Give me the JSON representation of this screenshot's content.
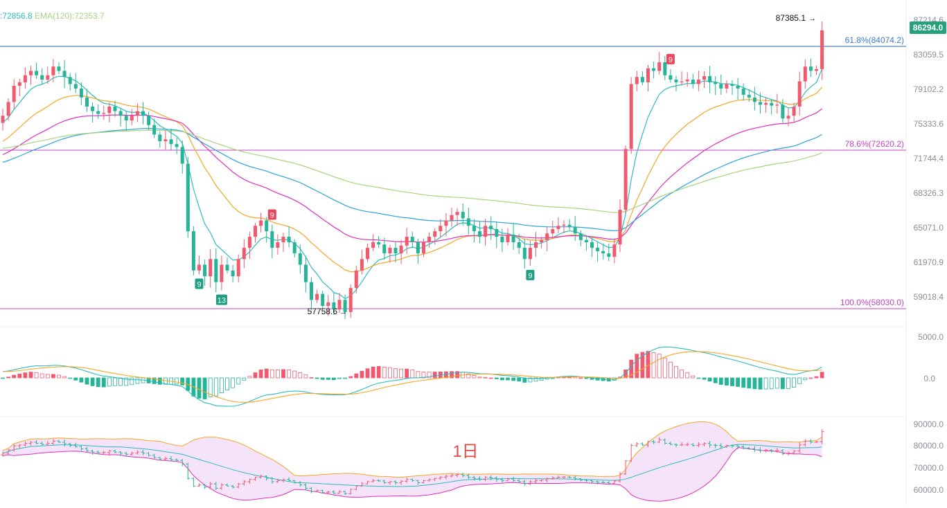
{
  "header": {
    "ema_a_label": ":72856.8",
    "ema_b_label": "EMA(120):72353.7"
  },
  "colors": {
    "up": "#ef5a6f",
    "down": "#25b497",
    "ema_fast": "#2bbcc1",
    "ema_mid": "#f5a623",
    "ema_slow_pink": "#e02dba",
    "ema_blue": "#27a4d8",
    "ema_green": "#a7d47c",
    "fib": "#2962a0",
    "fib_pink": "#c342c8",
    "current_price_bg": "#26a17b"
  },
  "price_panel": {
    "axis_ticks": [
      "87214.6",
      "83059.5",
      "79102.2",
      "75333.6",
      "71744.4",
      "68326.3",
      "65071.0",
      "61970.9",
      "59018.4"
    ],
    "current_price": "86294.0",
    "high_label": "87385.1",
    "low_label": "57758.6",
    "fib_levels": [
      {
        "label": "61.8%(84074.2)",
        "price": 84074.2
      },
      {
        "label": "78.6%(72620.2)",
        "price": 72620.2
      },
      {
        "label": "100.0%(58030.0)",
        "price": 58030.0
      }
    ],
    "td_counts": [
      {
        "text": "9",
        "kind": "up",
        "candle": 48
      },
      {
        "text": "9",
        "kind": "down",
        "candle": 35
      },
      {
        "text": "13",
        "kind": "down",
        "candle": 39
      },
      {
        "text": "9",
        "kind": "down",
        "candle": 94
      },
      {
        "text": "9",
        "kind": "up",
        "candle": 119
      }
    ]
  },
  "macd_panel": {
    "axis_ticks": [
      "5000.0",
      "0.0"
    ]
  },
  "bb_panel": {
    "axis_ticks": [
      "90000.0",
      "80000.0",
      "70000.0",
      "60000.0"
    ],
    "watermark": "1日"
  },
  "chart_data": {
    "type": "candlestick",
    "timeframe": "1日",
    "closes": [
      76500,
      78000,
      79800,
      80200,
      81000,
      81500,
      81000,
      80500,
      81000,
      82000,
      81500,
      80800,
      80000,
      79500,
      78500,
      77500,
      77000,
      76700,
      76800,
      77500,
      77000,
      76500,
      76000,
      76500,
      77000,
      76500,
      75500,
      74500,
      73800,
      74000,
      73500,
      73200,
      71500,
      65000,
      61500,
      62000,
      61000,
      62500,
      60500,
      62000,
      61500,
      61000,
      62500,
      63500,
      64500,
      65500,
      66000,
      65000,
      63500,
      64000,
      64500,
      64000,
      63000,
      62000,
      60500,
      59000,
      59500,
      58500,
      58800,
      58200,
      59000,
      58000,
      60000,
      61500,
      62500,
      63500,
      64000,
      63800,
      63000,
      63500,
      63000,
      63700,
      64500,
      64000,
      63000,
      64000,
      64500,
      65000,
      65500,
      66000,
      66500,
      66800,
      66200,
      65500,
      65000,
      64500,
      65500,
      65200,
      64500,
      64000,
      64700,
      64000,
      63500,
      62500,
      63500,
      64000,
      64200,
      64800,
      65200,
      65500,
      65600,
      65400,
      64800,
      64200,
      64000,
      63500,
      63200,
      63000,
      62700,
      63800,
      67000,
      73000,
      80000,
      80800,
      80200,
      81800,
      81500,
      82500,
      81000,
      80500,
      80200,
      80300,
      80500,
      80000,
      80500,
      80900,
      80200,
      80000,
      79500,
      80000,
      79800,
      79500,
      78800,
      78500,
      78000,
      77700,
      77900,
      77600,
      77700,
      76200,
      76500,
      77500,
      80300,
      82000,
      81500,
      81700,
      86294
    ],
    "ema_series": {
      "ema_fast_start": 77200,
      "ema_fast_end": 79102,
      "ema_mid_end": 77200,
      "ema_pink_end": 73500,
      "ema_blue_end": 72856.8,
      "ema_green_end": 72353.7
    }
  }
}
